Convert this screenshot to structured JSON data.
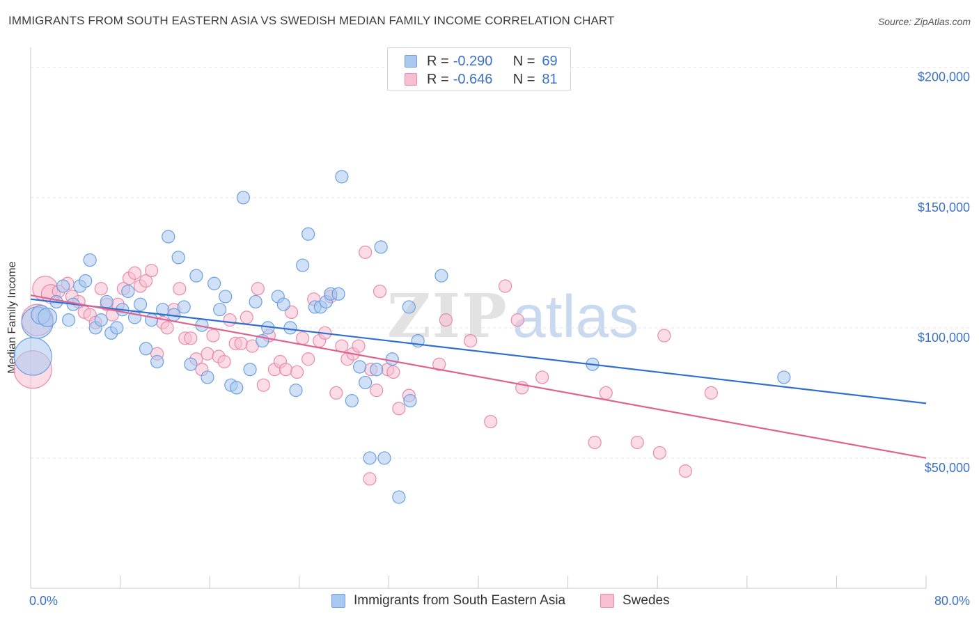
{
  "title": "IMMIGRANTS FROM SOUTH EASTERN ASIA VS SWEDISH MEDIAN FAMILY INCOME CORRELATION CHART",
  "source": "Source: ZipAtlas.com",
  "watermark": {
    "zip": "ZIP",
    "atlas": "atlas"
  },
  "colors": {
    "blue_fill": "#a9c8f0",
    "blue_stroke": "#6b9fe0",
    "blue_line": "#2f6fd0",
    "pink_fill": "#f7bfd1",
    "pink_stroke": "#e98aaa",
    "pink_line": "#e0628f",
    "axis_text": "#3b72c6",
    "grid": "#e3e3e3"
  },
  "legend": {
    "rows": [
      {
        "r_key": "R =",
        "r_val": "-0.290",
        "n_key": "N =",
        "n_val": "69"
      },
      {
        "r_key": "R =",
        "r_val": "-0.646",
        "n_key": "N =",
        "n_val": "81"
      }
    ]
  },
  "chart_data": {
    "type": "scatter",
    "title": "IMMIGRANTS FROM SOUTH EASTERN ASIA VS SWEDISH MEDIAN FAMILY INCOME CORRELATION CHART",
    "xlabel": "",
    "ylabel": "Median Family Income",
    "xlim": [
      0,
      80
    ],
    "ylim": [
      0,
      205000
    ],
    "x_tick_labels": [
      "0.0%",
      "80.0%"
    ],
    "y_ticks": [
      50000,
      100000,
      150000,
      200000
    ],
    "y_tick_labels": [
      "$50,000",
      "$100,000",
      "$150,000",
      "$200,000"
    ],
    "grid": true,
    "legend_position": "top-center",
    "series": [
      {
        "name": "Immigrants from South Eastern Asia",
        "color": "blue",
        "trend": {
          "x": [
            0,
            80
          ],
          "y": [
            111000,
            71000
          ]
        },
        "points": [
          [
            0.2,
            89000,
            3
          ],
          [
            0.6,
            102000,
            2.5
          ],
          [
            0.9,
            105000,
            1.5
          ],
          [
            1.5,
            104000,
            1.5
          ],
          [
            2.3,
            110000,
            1
          ],
          [
            2.9,
            116000,
            1
          ],
          [
            3.4,
            103000,
            1
          ],
          [
            3.8,
            109000,
            1
          ],
          [
            4.4,
            116000,
            1
          ],
          [
            4.9,
            118000,
            1
          ],
          [
            5.3,
            126000,
            1
          ],
          [
            5.8,
            100000,
            1
          ],
          [
            6.3,
            103000,
            1
          ],
          [
            6.8,
            110000,
            1
          ],
          [
            7.2,
            98000,
            1
          ],
          [
            7.7,
            100000,
            1
          ],
          [
            8.2,
            107000,
            1
          ],
          [
            8.7,
            114000,
            1
          ],
          [
            9.3,
            104000,
            1
          ],
          [
            9.8,
            109000,
            1
          ],
          [
            10.3,
            92000,
            1
          ],
          [
            10.8,
            103000,
            1
          ],
          [
            11.3,
            87000,
            1
          ],
          [
            11.8,
            107000,
            1
          ],
          [
            12.3,
            135000,
            1
          ],
          [
            12.8,
            105000,
            1
          ],
          [
            13.2,
            127000,
            1
          ],
          [
            13.7,
            108000,
            1
          ],
          [
            14.3,
            86000,
            1
          ],
          [
            14.8,
            120000,
            1
          ],
          [
            15.3,
            101000,
            1
          ],
          [
            15.8,
            81000,
            1
          ],
          [
            16.4,
            117000,
            1
          ],
          [
            16.9,
            107000,
            1
          ],
          [
            17.4,
            112000,
            1
          ],
          [
            17.9,
            78000,
            1
          ],
          [
            18.4,
            77000,
            1
          ],
          [
            19.0,
            150000,
            1
          ],
          [
            19.6,
            84000,
            1
          ],
          [
            20.1,
            110000,
            1
          ],
          [
            20.7,
            95000,
            1
          ],
          [
            21.2,
            100000,
            1
          ],
          [
            22.1,
            112000,
            1
          ],
          [
            22.6,
            109000,
            1
          ],
          [
            23.2,
            100000,
            1
          ],
          [
            23.7,
            76000,
            1
          ],
          [
            24.3,
            124000,
            1
          ],
          [
            24.8,
            136000,
            1
          ],
          [
            25.4,
            108000,
            1
          ],
          [
            25.9,
            108000,
            1
          ],
          [
            26.4,
            110000,
            1
          ],
          [
            26.8,
            113000,
            1
          ],
          [
            27.5,
            113000,
            1
          ],
          [
            27.8,
            158000,
            1
          ],
          [
            28.7,
            72000,
            1
          ],
          [
            29.4,
            85000,
            1
          ],
          [
            29.9,
            79000,
            1
          ],
          [
            30.3,
            50000,
            1
          ],
          [
            30.9,
            84000,
            1
          ],
          [
            31.3,
            131000,
            1
          ],
          [
            31.6,
            50000,
            1
          ],
          [
            32.3,
            88000,
            1
          ],
          [
            32.9,
            35000,
            1
          ],
          [
            33.8,
            108000,
            1
          ],
          [
            33.9,
            72000,
            1
          ],
          [
            34.6,
            95000,
            1
          ],
          [
            36.7,
            120000,
            1
          ],
          [
            50.2,
            86000,
            1
          ],
          [
            67.3,
            81000,
            1
          ]
        ]
      },
      {
        "name": "Swedes",
        "color": "pink",
        "trend": {
          "x": [
            0,
            80
          ],
          "y": [
            112500,
            50000
          ]
        },
        "points": [
          [
            0.2,
            84000,
            3
          ],
          [
            0.6,
            103000,
            2.5
          ],
          [
            1.3,
            115000,
            2
          ],
          [
            1.8,
            113000,
            1.5
          ],
          [
            2.5,
            114000,
            1
          ],
          [
            3.3,
            117000,
            1
          ],
          [
            3.7,
            112000,
            1
          ],
          [
            4.3,
            110000,
            1
          ],
          [
            4.8,
            106000,
            1
          ],
          [
            5.3,
            105000,
            1
          ],
          [
            5.8,
            102000,
            1
          ],
          [
            6.3,
            115000,
            1
          ],
          [
            6.8,
            109000,
            1
          ],
          [
            7.3,
            105000,
            1
          ],
          [
            7.8,
            109000,
            1
          ],
          [
            8.3,
            115000,
            1
          ],
          [
            8.8,
            119000,
            1
          ],
          [
            9.3,
            121000,
            1
          ],
          [
            9.8,
            116000,
            1
          ],
          [
            10.3,
            118000,
            1
          ],
          [
            10.8,
            122000,
            1
          ],
          [
            11.3,
            90000,
            1
          ],
          [
            11.8,
            102000,
            1
          ],
          [
            12.2,
            100000,
            1
          ],
          [
            12.8,
            107000,
            1
          ],
          [
            13.3,
            115000,
            1
          ],
          [
            13.8,
            96000,
            1
          ],
          [
            14.3,
            96000,
            1
          ],
          [
            14.8,
            88000,
            1
          ],
          [
            15.3,
            84000,
            1
          ],
          [
            15.8,
            90000,
            1
          ],
          [
            16.3,
            97000,
            1
          ],
          [
            16.8,
            89000,
            1
          ],
          [
            17.3,
            87000,
            1
          ],
          [
            17.8,
            103000,
            1
          ],
          [
            18.3,
            94000,
            1
          ],
          [
            18.8,
            94000,
            1
          ],
          [
            19.3,
            104000,
            1
          ],
          [
            19.8,
            93000,
            1
          ],
          [
            20.3,
            115000,
            1
          ],
          [
            20.8,
            78000,
            1
          ],
          [
            21.3,
            97000,
            1
          ],
          [
            21.8,
            84000,
            1
          ],
          [
            22.3,
            87000,
            1
          ],
          [
            22.8,
            84000,
            1
          ],
          [
            23.3,
            106000,
            1
          ],
          [
            23.8,
            83000,
            1
          ],
          [
            24.3,
            96000,
            1
          ],
          [
            24.8,
            88000,
            1
          ],
          [
            25.3,
            111000,
            1
          ],
          [
            25.8,
            95000,
            1
          ],
          [
            26.3,
            98000,
            1
          ],
          [
            26.8,
            112000,
            1
          ],
          [
            27.3,
            75000,
            1
          ],
          [
            27.8,
            93000,
            1
          ],
          [
            28.3,
            88000,
            1
          ],
          [
            28.8,
            90000,
            1
          ],
          [
            29.3,
            93000,
            1
          ],
          [
            29.9,
            129000,
            1
          ],
          [
            30.4,
            84000,
            1
          ],
          [
            30.9,
            76000,
            1
          ],
          [
            31.2,
            114000,
            1
          ],
          [
            31.9,
            84000,
            1
          ],
          [
            32.4,
            83000,
            1
          ],
          [
            32.9,
            69000,
            1
          ],
          [
            33.8,
            74000,
            1
          ],
          [
            36.5,
            86000,
            1
          ],
          [
            37.1,
            103000,
            1
          ],
          [
            39.3,
            95000,
            1
          ],
          [
            41.1,
            64000,
            1
          ],
          [
            42.4,
            116000,
            1
          ],
          [
            43.5,
            103000,
            1
          ],
          [
            43.9,
            77000,
            1
          ],
          [
            45.7,
            81000,
            1
          ],
          [
            50.4,
            56000,
            1
          ],
          [
            51.4,
            75000,
            1
          ],
          [
            54.2,
            56000,
            1
          ],
          [
            56.2,
            52000,
            1
          ],
          [
            56.6,
            97000,
            1
          ],
          [
            58.5,
            45000,
            1
          ],
          [
            60.8,
            75000,
            1
          ],
          [
            30.3,
            42000,
            1
          ]
        ]
      }
    ]
  },
  "bottom_legend": {
    "items": [
      "Immigrants from South Eastern Asia",
      "Swedes"
    ]
  }
}
